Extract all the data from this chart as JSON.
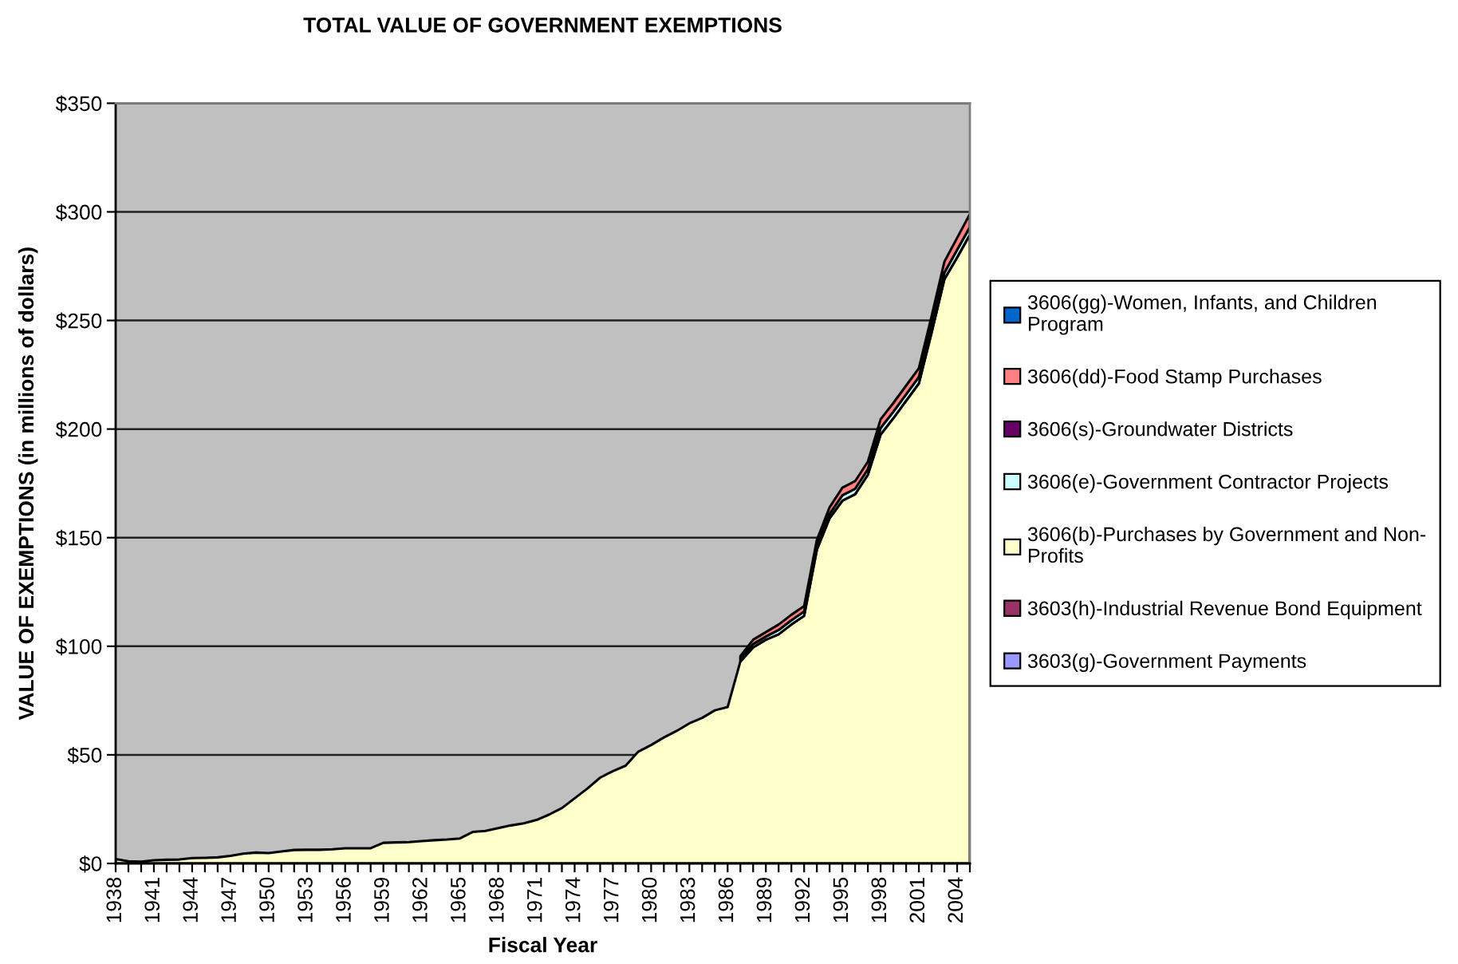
{
  "chart_data": {
    "type": "area",
    "stacked": true,
    "title": "TOTAL VALUE OF GOVERNMENT EXEMPTIONS",
    "xlabel": "Fiscal Year",
    "ylabel": "VALUE OF EXEMPTIONS (in millions of dollars)",
    "categories": [
      "1938",
      null,
      null,
      "1941",
      null,
      null,
      "1944",
      null,
      null,
      "1947",
      null,
      null,
      "1950",
      null,
      null,
      "1953",
      null,
      null,
      "1956",
      null,
      null,
      "1959",
      null,
      null,
      "1962",
      null,
      null,
      "1965",
      null,
      null,
      "1968",
      null,
      null,
      "1971",
      null,
      null,
      "1974",
      null,
      null,
      "1977",
      null,
      null,
      "1980",
      null,
      null,
      "1983",
      null,
      null,
      "1986",
      null,
      null,
      "1989",
      null,
      null,
      "1992",
      null,
      null,
      "1995",
      null,
      null,
      "1998",
      null,
      null,
      "2001",
      null,
      null,
      "2004",
      null
    ],
    "ylim": [
      0,
      350
    ],
    "yticks": [
      {
        "value": 0,
        "label": "$0"
      },
      {
        "value": 50,
        "label": "$50"
      },
      {
        "value": 100,
        "label": "$100"
      },
      {
        "value": 150,
        "label": "$150"
      },
      {
        "value": 200,
        "label": "$200"
      },
      {
        "value": 250,
        "label": "$250"
      },
      {
        "value": 300,
        "label": "$300"
      },
      {
        "value": 350,
        "label": "$350"
      }
    ],
    "grid": "y",
    "legend": "right",
    "series": [
      {
        "name": "3603(g)-Government Payments",
        "color": "#9999ff",
        "values": [
          null,
          null,
          null,
          null,
          null,
          null,
          null,
          null,
          null,
          null,
          null,
          null,
          null,
          null,
          null,
          null,
          null,
          null,
          null,
          null,
          null,
          null,
          null,
          null,
          null,
          null,
          null,
          null,
          null,
          null,
          null,
          null,
          null,
          null,
          null,
          null,
          null,
          null,
          null,
          null,
          null,
          null,
          null,
          null,
          null,
          null,
          null,
          null,
          null,
          null,
          null,
          null,
          null,
          null,
          null,
          null,
          null,
          null,
          null,
          null,
          null,
          null,
          null,
          null,
          null,
          null,
          null,
          null
        ]
      },
      {
        "name": "3603(h)-Industrial Revenue Bond Equipment",
        "color": "#993366",
        "values": [
          null,
          null,
          null,
          null,
          null,
          null,
          null,
          null,
          null,
          null,
          null,
          null,
          null,
          null,
          null,
          null,
          null,
          null,
          null,
          null,
          null,
          null,
          null,
          null,
          null,
          null,
          null,
          null,
          null,
          null,
          null,
          null,
          null,
          null,
          null,
          null,
          null,
          null,
          null,
          null,
          null,
          null,
          null,
          null,
          null,
          null,
          null,
          null,
          null,
          null,
          null,
          null,
          null,
          null,
          null,
          null,
          null,
          null,
          null,
          null,
          null,
          null,
          null,
          null,
          null,
          null,
          null,
          null
        ]
      },
      {
        "name": "3606(b)-Purchases by Government and Non-Profits",
        "color": "#ffffcc",
        "values": [
          2.0,
          1.0,
          0.8,
          1.5,
          1.7,
          1.8,
          2.5,
          2.6,
          2.8,
          3.5,
          4.5,
          5.0,
          4.8,
          5.5,
          6.2,
          6.3,
          6.3,
          6.5,
          7.0,
          7.0,
          7.0,
          9.5,
          9.7,
          9.8,
          10.3,
          10.7,
          11.0,
          11.5,
          14.5,
          15.0,
          16.3,
          17.5,
          18.5,
          20.0,
          22.5,
          25.5,
          30.0,
          34.5,
          39.5,
          42.5,
          45.0,
          51.5,
          54.5,
          58,
          61,
          64.5,
          67,
          70.5,
          72,
          93,
          99.5,
          103,
          105.5,
          110,
          114,
          144.5,
          159,
          167,
          170,
          179,
          197.5,
          205,
          213,
          221,
          244.5,
          269,
          279,
          289.5
        ]
      },
      {
        "name": "3606(e)-Government Contractor Projects",
        "color": "#ccffff",
        "values": [
          null,
          null,
          null,
          null,
          null,
          null,
          null,
          null,
          null,
          null,
          null,
          null,
          null,
          null,
          null,
          null,
          null,
          null,
          null,
          null,
          null,
          null,
          null,
          null,
          null,
          null,
          null,
          null,
          null,
          null,
          null,
          null,
          null,
          null,
          null,
          null,
          null,
          null,
          null,
          null,
          null,
          null,
          null,
          null,
          null,
          null,
          null,
          null,
          null,
          1,
          1.5,
          1.5,
          2,
          2,
          2,
          2,
          2,
          2.5,
          2.5,
          2.5,
          3,
          3,
          3,
          3,
          3,
          3,
          3.5,
          3.5
        ]
      },
      {
        "name": "3606(s)-Groundwater Districts",
        "color": "#660066",
        "values": [
          null,
          null,
          null,
          null,
          null,
          null,
          null,
          null,
          null,
          null,
          null,
          null,
          null,
          null,
          null,
          null,
          null,
          null,
          null,
          null,
          null,
          null,
          null,
          null,
          null,
          null,
          null,
          null,
          null,
          null,
          null,
          null,
          null,
          null,
          null,
          null,
          null,
          null,
          null,
          null,
          null,
          null,
          null,
          null,
          null,
          null,
          null,
          null,
          null,
          null,
          null,
          null,
          null,
          null,
          null,
          null,
          null,
          null,
          null,
          null,
          null,
          null,
          null,
          null,
          null,
          null,
          null,
          null
        ]
      },
      {
        "name": "3606(dd)-Food Stamp Purchases",
        "color": "#ff8080",
        "values": [
          null,
          null,
          null,
          null,
          null,
          null,
          null,
          null,
          null,
          null,
          null,
          null,
          null,
          null,
          null,
          null,
          null,
          null,
          null,
          null,
          null,
          null,
          null,
          null,
          null,
          null,
          null,
          null,
          null,
          null,
          null,
          null,
          null,
          null,
          null,
          null,
          null,
          null,
          null,
          null,
          null,
          null,
          null,
          null,
          null,
          null,
          null,
          null,
          null,
          1.5,
          2,
          2,
          2.5,
          2.5,
          2.5,
          2.5,
          3,
          3.5,
          3.5,
          3.5,
          4,
          4,
          4,
          4,
          4.5,
          5,
          5.5,
          6
        ]
      },
      {
        "name": "3606(gg)-Women, Infants, and Children Program",
        "color": "#0066cc",
        "values": [
          null,
          null,
          null,
          null,
          null,
          null,
          null,
          null,
          null,
          null,
          null,
          null,
          null,
          null,
          null,
          null,
          null,
          null,
          null,
          null,
          null,
          null,
          null,
          null,
          null,
          null,
          null,
          null,
          null,
          null,
          null,
          null,
          null,
          null,
          null,
          null,
          null,
          null,
          null,
          null,
          null,
          null,
          null,
          null,
          null,
          null,
          null,
          null,
          null,
          null,
          null,
          null,
          null,
          null,
          null,
          null,
          null,
          null,
          null,
          null,
          null,
          null,
          null,
          null,
          null,
          null,
          null,
          null
        ]
      }
    ]
  }
}
